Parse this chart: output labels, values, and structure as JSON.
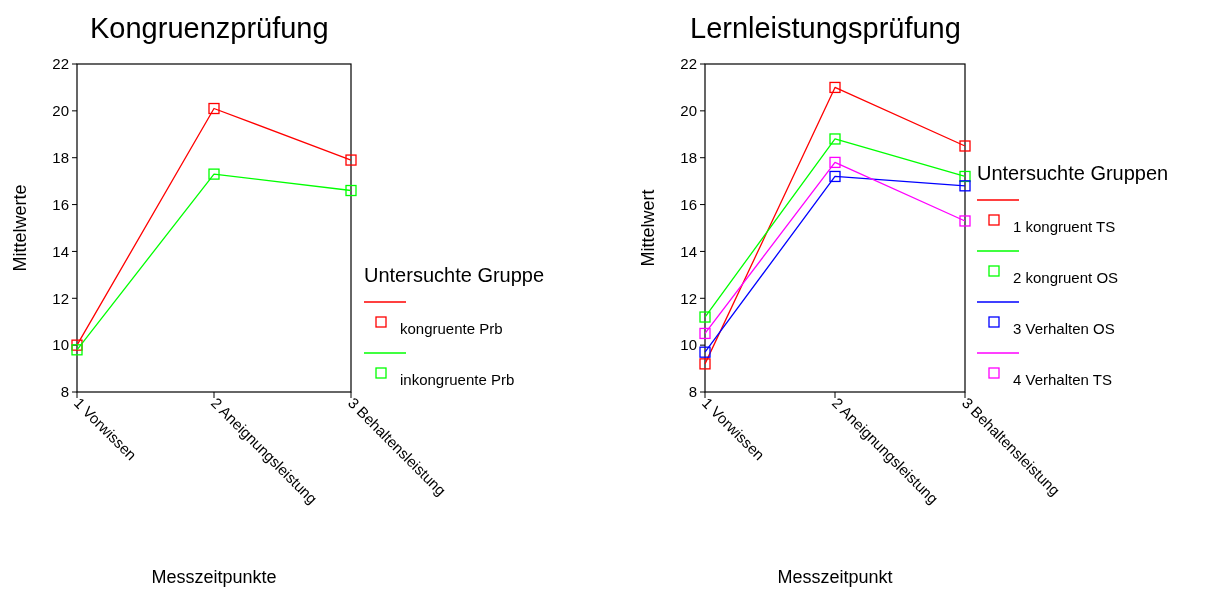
{
  "chart_data": [
    {
      "type": "line",
      "title": "Kongruenzprüfung",
      "xlabel": "Messzeitpunkte",
      "ylabel": "Mittelwerte",
      "legend_title": "Untersuchte Gruppe",
      "legend": "right",
      "marker": "square",
      "line_style": "solid",
      "categories": [
        "1 Vorwissen",
        "2 Aneignungsleistung",
        "3 Behaltensleistung"
      ],
      "ylim": [
        8,
        22
      ],
      "yticks": [
        8,
        10,
        12,
        14,
        16,
        18,
        20,
        22
      ],
      "series": [
        {
          "name": "kongruente Prb",
          "color": "#ff0000",
          "values": [
            10.0,
            20.1,
            17.9
          ]
        },
        {
          "name": "inkongruente Prb",
          "color": "#00ff00",
          "values": [
            9.8,
            17.3,
            16.6
          ]
        }
      ]
    },
    {
      "type": "line",
      "title": "Lernleistungsprüfung",
      "xlabel": "Messzeitpunkt",
      "ylabel": "Mittelwert",
      "legend_title": "Untersuchte Gruppen",
      "legend": "right",
      "marker": "square",
      "line_style": "solid",
      "categories": [
        "1 Vorwissen",
        "2 Aneignungsleistung",
        "3 Behaltensleistung"
      ],
      "ylim": [
        8,
        22
      ],
      "yticks": [
        8,
        10,
        12,
        14,
        16,
        18,
        20,
        22
      ],
      "series": [
        {
          "name": "1 kongruent TS",
          "color": "#ff0000",
          "values": [
            9.2,
            21.0,
            18.5
          ]
        },
        {
          "name": "2 kongruent OS",
          "color": "#00ff00",
          "values": [
            11.2,
            18.8,
            17.2
          ]
        },
        {
          "name": "3 Verhalten OS",
          "color": "#0000ff",
          "values": [
            9.7,
            17.2,
            16.8
          ]
        },
        {
          "name": "4 Verhalten TS",
          "color": "#ff00ff",
          "values": [
            10.5,
            17.8,
            15.3
          ]
        }
      ]
    }
  ]
}
